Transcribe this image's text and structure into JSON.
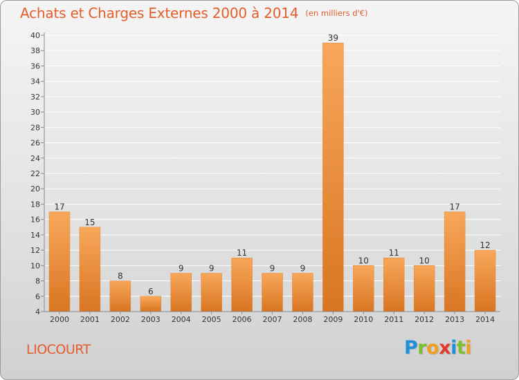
{
  "page": {
    "title": "Achats et Charges Externes 2000 à 2014",
    "unit_note": "(en milliers d'€)",
    "commune": "LIOCOURT",
    "logo": {
      "letters": [
        "P",
        "r",
        "o",
        "x",
        "i",
        "t",
        "i"
      ],
      "colors": [
        "#1e90d6",
        "#7cbf2e",
        "#f0a01e",
        "#e23a2e",
        "#1e90d6",
        "#7cbf2e",
        "#f0a01e"
      ]
    }
  },
  "colors": {
    "title": "#e45c2c",
    "bar_top": "#f8a75a",
    "bar_bottom": "#d87522",
    "bar_stroke": "#e08a38",
    "grid": "#ffffff",
    "axis": "#888888"
  },
  "chart_data": {
    "type": "bar",
    "title": "Achats et Charges Externes 2000 à 2014",
    "subtitle": "(en milliers d'€)",
    "categories": [
      "2000",
      "2001",
      "2002",
      "2003",
      "2004",
      "2005",
      "2006",
      "2007",
      "2008",
      "2009",
      "2010",
      "2011",
      "2012",
      "2013",
      "2014"
    ],
    "values": [
      17,
      15,
      8,
      6,
      9,
      9,
      11,
      9,
      9,
      39,
      10,
      11,
      10,
      17,
      12
    ],
    "xlabel": "",
    "ylabel": "",
    "ylim": [
      4,
      40
    ],
    "yticks": [
      4,
      6,
      8,
      10,
      12,
      14,
      16,
      18,
      20,
      22,
      24,
      26,
      28,
      30,
      32,
      34,
      36,
      38,
      40
    ],
    "grid": true,
    "data_labels": true
  }
}
